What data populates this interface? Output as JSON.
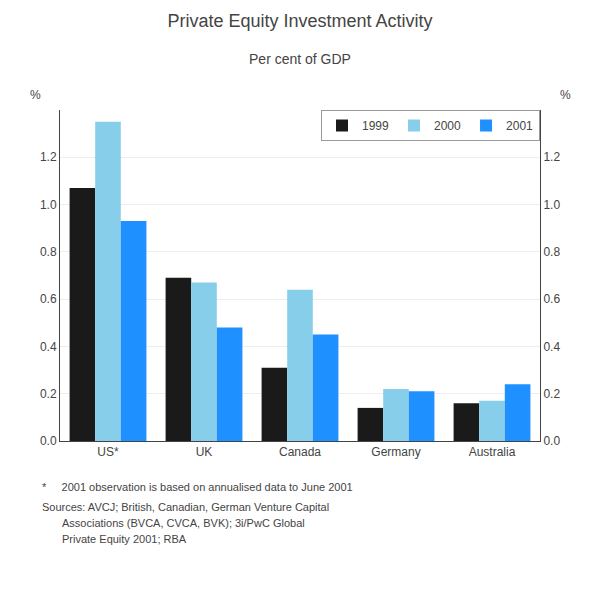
{
  "chart_data": {
    "type": "bar",
    "title": "Private Equity Investment Activity",
    "subtitle": "Per cent of GDP",
    "categories": [
      "US*",
      "UK",
      "Canada",
      "Germany",
      "Australia"
    ],
    "series": [
      {
        "name": "1999",
        "color": "#1a1a1a",
        "values": [
          1.07,
          0.69,
          0.31,
          0.14,
          0.16
        ]
      },
      {
        "name": "2000",
        "color": "#87ceeb",
        "values": [
          1.35,
          0.67,
          0.64,
          0.22,
          0.17
        ]
      },
      {
        "name": "2001",
        "color": "#1e90ff",
        "values": [
          0.93,
          0.48,
          0.45,
          0.21,
          0.24
        ]
      }
    ],
    "ylabel": "%",
    "y2label": "%",
    "ylim": [
      0,
      1.4
    ],
    "yticks": [
      {
        "value": 0,
        "label": "0.0"
      },
      0.2,
      0.4,
      0.6,
      0.8,
      {
        "value": 1,
        "label": "1.0"
      },
      1.2
    ],
    "y2lim": [
      0,
      1.4
    ],
    "y2ticks": [
      {
        "value": 0,
        "label": "0.0"
      },
      0.2,
      0.4,
      0.6,
      0.8,
      {
        "value": 1,
        "label": "1.0"
      },
      1.2
    ],
    "grid": true,
    "legend": "upper right",
    "annotations": [
      "*     2001 observation is based on annualised data to June 2001",
      "Sources: AVCJ; British, Canadian, German Venture Capital",
      "Associations (BVCA, CVCA, BVK); 3i/PwC Global",
      "Private Equity 2001; RBA"
    ]
  }
}
